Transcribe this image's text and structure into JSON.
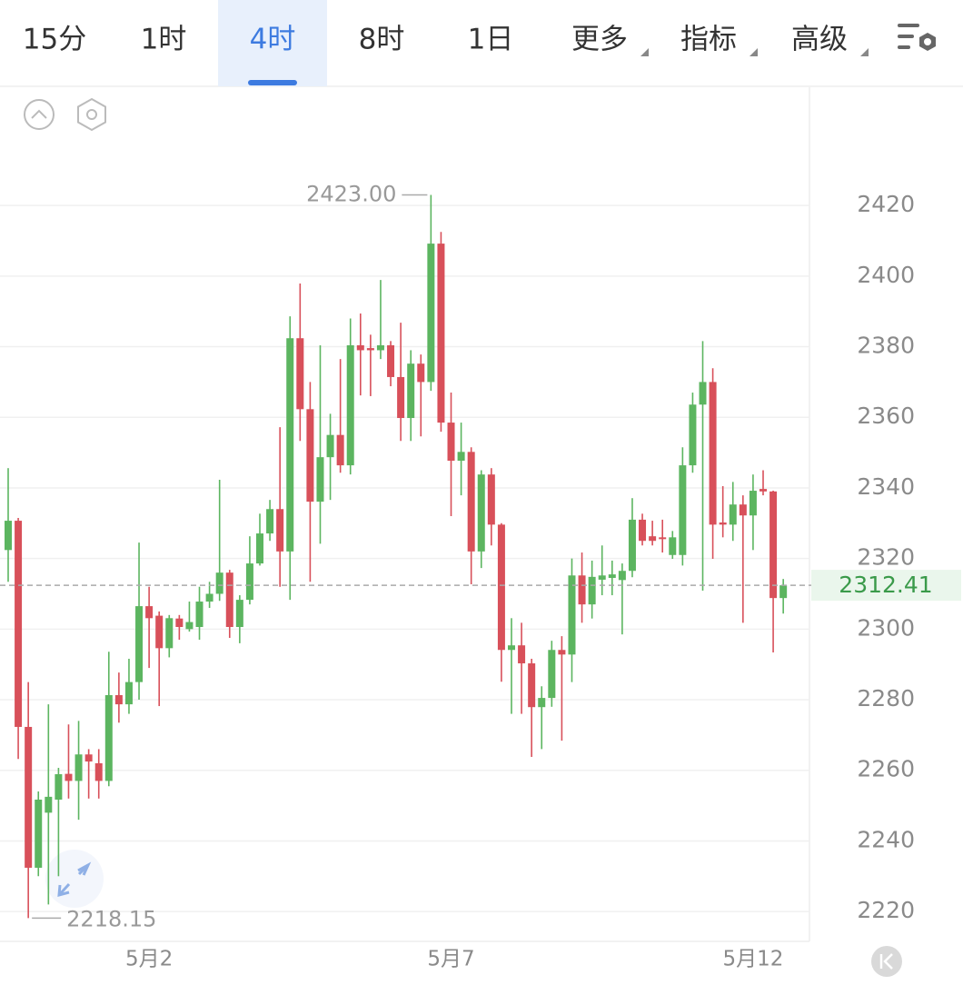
{
  "tabs": [
    "15分",
    "1时",
    "4时",
    "8时",
    "1日",
    "更多",
    "指标",
    "高级"
  ],
  "active_tab": 2,
  "dropdown_tabs": [
    5,
    6,
    7
  ],
  "chart_data": {
    "type": "candlestick",
    "categories": [
      null,
      null,
      null,
      null,
      null,
      null,
      null,
      null,
      null,
      null,
      null,
      null,
      null,
      null,
      "5月2",
      null,
      null,
      null,
      null,
      null,
      null,
      null,
      null,
      null,
      null,
      null,
      null,
      null,
      null,
      null,
      null,
      null,
      null,
      null,
      null,
      null,
      null,
      null,
      null,
      null,
      null,
      null,
      null,
      null,
      "5月7",
      null,
      null,
      null,
      null,
      null,
      null,
      null,
      null,
      null,
      null,
      null,
      null,
      null,
      null,
      null,
      null,
      null,
      null,
      null,
      null,
      null,
      null,
      null,
      null,
      null,
      null,
      null,
      null,
      null,
      "5月12",
      null,
      null,
      null
    ],
    "open": [
      2322.4,
      2330.7,
      2272.3,
      2232.4,
      2248,
      2251.7,
      2259,
      2257,
      2264.5,
      2262,
      2257,
      2281.3,
      2278.7,
      2285,
      2306.5,
      2303.8,
      2294.6,
      2303,
      2300,
      2300.6,
      2307.8,
      2310,
      2316,
      2300.6,
      2308.3,
      2318.6,
      2327.1,
      2334,
      2322,
      2382.4,
      2362.3,
      2336.1,
      2348.7,
      2355,
      2346.4,
      2380.4,
      2379.6,
      2379,
      2380.4,
      2371.4,
      2359.8,
      2375.2,
      2370,
      2409.2,
      2358.5,
      2347.7,
      2350.2,
      2322,
      2343.8,
      2329.6,
      2294.1,
      2295.4,
      2290.3,
      2277.9,
      2280.5,
      2294.1,
      2292.8,
      2315.2,
      2307,
      2314,
      2314.5,
      2313.9,
      2316.5,
      2331,
      2326.3,
      2326,
      2321,
      2321,
      2346.4,
      2363.6,
      2370,
      2330.2,
      2329.6,
      2335.3,
      2332.2,
      2339.7,
      2339,
      2308.8
    ],
    "close": [
      2330.7,
      2272.3,
      2232.4,
      2251.7,
      2252.5,
      2258.9,
      2257,
      2264.5,
      2262.5,
      2257,
      2281.3,
      2278.7,
      2285,
      2306.5,
      2303.1,
      2294.6,
      2303.1,
      2300.6,
      2302,
      2307.8,
      2310,
      2316,
      2300.6,
      2308.3,
      2318.6,
      2327.1,
      2334,
      2322,
      2382.4,
      2362.3,
      2336.1,
      2348.7,
      2355,
      2346.4,
      2380.4,
      2379,
      2379,
      2380.4,
      2371.4,
      2359.8,
      2375.2,
      2370,
      2409.2,
      2358.5,
      2347.7,
      2350.2,
      2322,
      2343.8,
      2329.6,
      2294.1,
      2295.4,
      2290.3,
      2277.9,
      2280.5,
      2294.1,
      2292.8,
      2315.2,
      2307,
      2314.8,
      2315.2,
      2315.5,
      2316.5,
      2331,
      2325,
      2325,
      2325.5,
      2326,
      2346.4,
      2363.6,
      2370,
      2329.6,
      2329.6,
      2335.3,
      2332.2,
      2339.2,
      2339,
      2308.8,
      2312.41
    ],
    "high": [
      2345.6,
      2331.5,
      2285,
      2254,
      2278.7,
      2260.7,
      2273,
      2274,
      2266,
      2266,
      2293.6,
      2287.7,
      2291.6,
      2324.5,
      2312,
      2305,
      2304,
      2304,
      2307.8,
      2312,
      2313.4,
      2342.3,
      2316.8,
      2309.6,
      2326.3,
      2332.7,
      2336.6,
      2357.2,
      2388.6,
      2397.9,
      2370,
      2380.4,
      2361,
      2376.5,
      2388,
      2389.4,
      2383.4,
      2398.9,
      2381.6,
      2386.8,
      2379,
      2377.8,
      2423,
      2412.5,
      2367,
      2358.5,
      2351.5,
      2345,
      2345.6,
      2330,
      2303.1,
      2301.8,
      2291.6,
      2283.8,
      2296.7,
      2298,
      2320,
      2321.7,
      2319.4,
      2323.7,
      2319.4,
      2318.6,
      2337.1,
      2332.7,
      2330.7,
      2331,
      2327.8,
      2351.5,
      2367,
      2381.6,
      2373.9,
      2340.5,
      2341.7,
      2337.9,
      2343.8,
      2345,
      2339.2,
      2314.2
    ],
    "low": [
      2313.4,
      2263.2,
      2218.15,
      2230,
      2222,
      2230,
      2252,
      2246,
      2252,
      2252,
      2255.5,
      2273.5,
      2276,
      2280,
      2289,
      2278.2,
      2292,
      2297,
      2299.3,
      2297,
      2306,
      2308,
      2297.5,
      2296,
      2307,
      2318,
      2325,
      2312,
      2308.3,
      2353.3,
      2313.4,
      2324.2,
      2336.6,
      2344.3,
      2343.8,
      2366.2,
      2366,
      2376.5,
      2368.8,
      2353.3,
      2353.3,
      2354.6,
      2367.5,
      2355.9,
      2332,
      2337.9,
      2312.7,
      2317.3,
      2323.7,
      2285.1,
      2276,
      2276,
      2263.8,
      2266,
      2278,
      2268.4,
      2285,
      2301.8,
      2303,
      2309.6,
      2309.6,
      2298.5,
      2314.7,
      2323.7,
      2323.7,
      2321.7,
      2319.9,
      2318,
      2344.3,
      2310.9,
      2319.9,
      2326,
      2325,
      2301.8,
      2322.4,
      2337.9,
      2293.4,
      2304.4
    ],
    "up_color": "#5cb560",
    "down_color": "#d8505a",
    "ylim": [
      2211.8,
      2453.5
    ],
    "yticks": [
      2220,
      2240,
      2260,
      2280,
      2300,
      2320,
      2340,
      2360,
      2380,
      2400,
      2420
    ],
    "grid": true,
    "max_marker": {
      "value": 2423,
      "label": "2423.00"
    },
    "min_marker": 2218.15,
    "last_price": 2312.41
  }
}
